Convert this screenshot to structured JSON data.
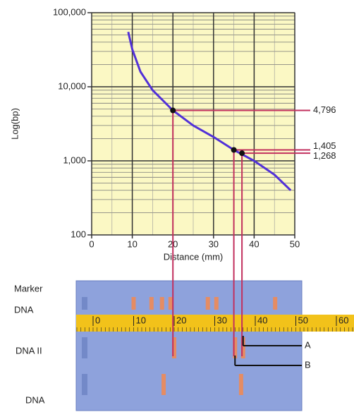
{
  "chart_data": [
    {
      "type": "line",
      "scale": "log",
      "x_label": "Distance (mm)",
      "y_label": "Log(bp)",
      "xlim": [
        0,
        50
      ],
      "xticks": [
        0,
        10,
        20,
        30,
        40,
        50
      ],
      "ylim": [
        100,
        100000
      ],
      "yticks": [
        100,
        {
          "value": 1000,
          "label": "1,000"
        },
        {
          "value": 10000,
          "label": "10,000"
        },
        {
          "value": 100000,
          "label": "100,000"
        }
      ],
      "grid": true,
      "background": "#fbf8c4",
      "x": [
        9,
        10,
        12,
        15,
        20,
        25,
        30,
        35,
        40,
        45,
        49
      ],
      "series": [
        {
          "color": "#5130d8",
          "values": [
            55000,
            32000,
            16000,
            9000,
            4796,
            3000,
            2100,
            1405,
            1000,
            650,
            400
          ]
        }
      ],
      "highlight": {
        "color": "#c2305e",
        "x": [
          20,
          35,
          37
        ],
        "values": [
          4796,
          1405,
          1268
        ],
        "value_labels": [
          "4,796",
          "1,405",
          "1,268"
        ]
      }
    },
    {
      "type": "gel",
      "xlim": [
        -4,
        64
      ],
      "xticks": [
        0,
        10,
        20,
        30,
        40,
        50,
        60
      ],
      "band_color": "#e58c63",
      "lanes": [
        {
          "labels": [
            "Marker",
            "DNA"
          ],
          "bands": [
            10,
            14.4,
            17,
            19.1,
            28.3,
            30.4,
            44.9
          ]
        },
        {
          "labels": [
            "DNA II"
          ],
          "bands": [
            20,
            35,
            37
          ]
        },
        {
          "labels": [
            "DNA"
          ],
          "bands": [
            17.4,
            36.5
          ]
        }
      ],
      "annotations": [
        {
          "text": "A",
          "x": 37
        },
        {
          "text": "B",
          "x": 35
        }
      ]
    }
  ]
}
